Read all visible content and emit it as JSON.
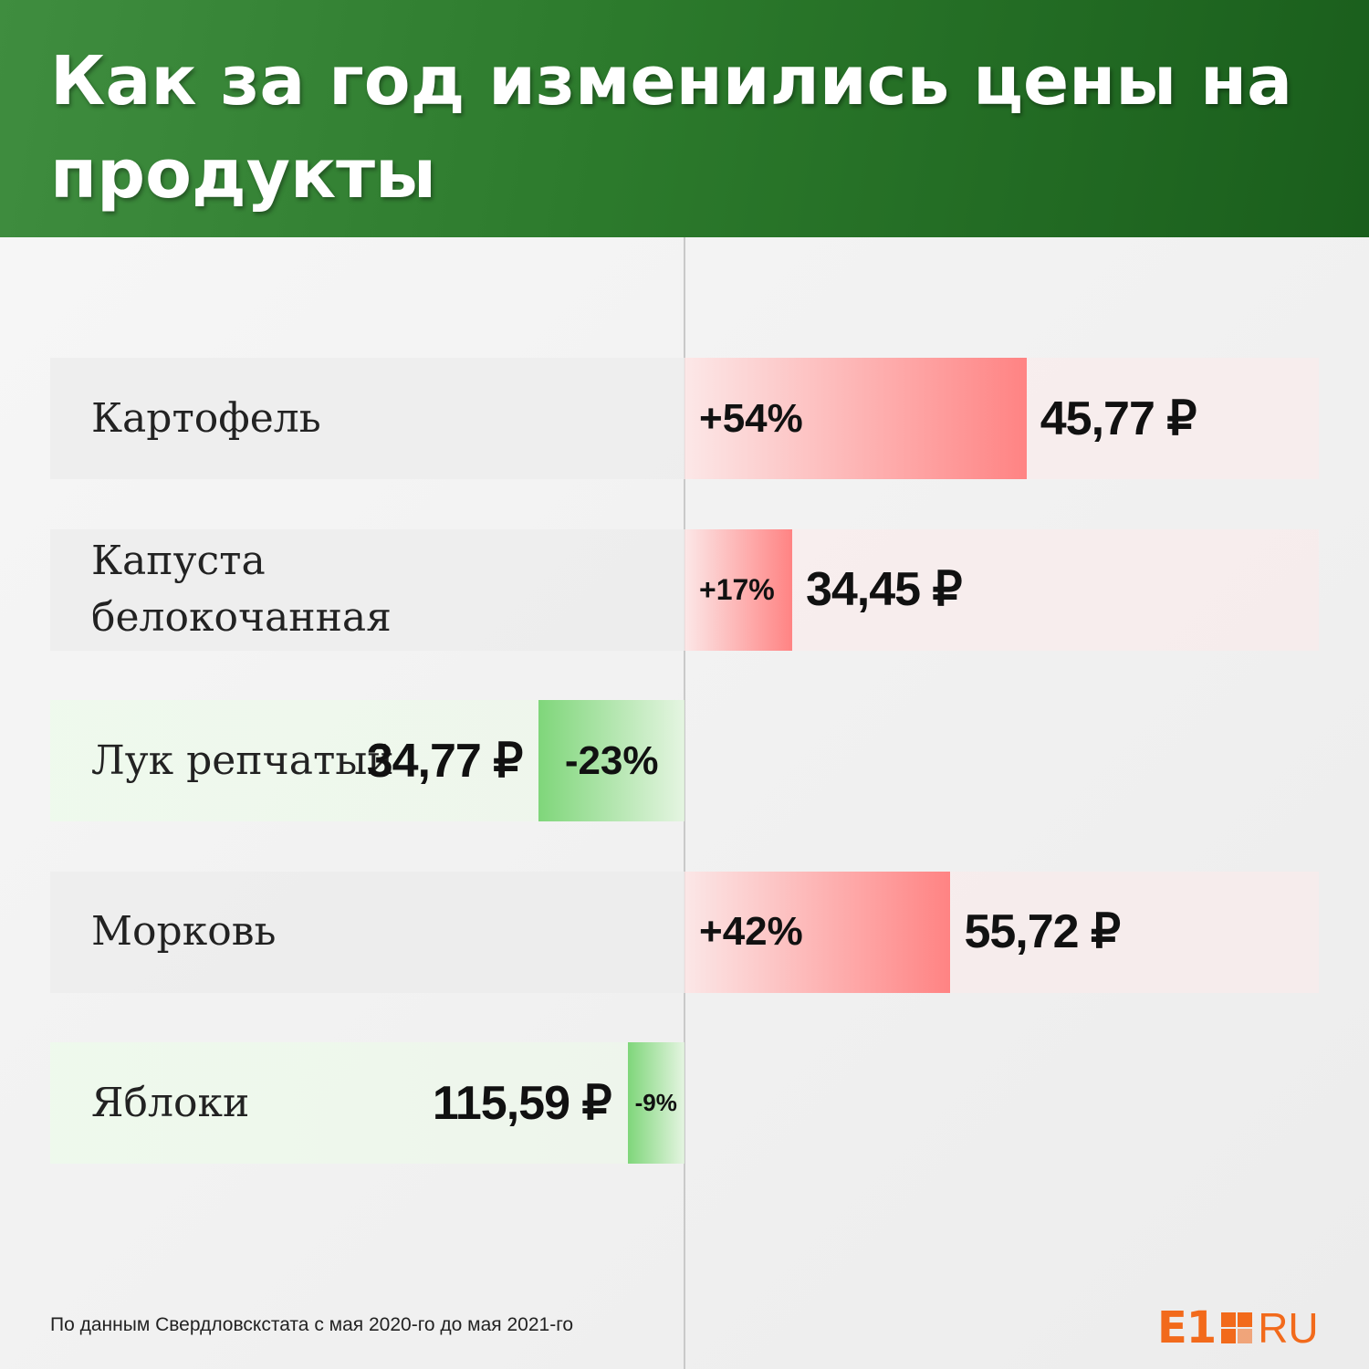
{
  "header": {
    "title": "Как за год изменились цены на продукты"
  },
  "colors": {
    "header_start": "#3f8d3f",
    "header_end": "#1a5e1c",
    "increase": "#ff8383",
    "decrease": "#7fd67a",
    "logo": "#f26a1b"
  },
  "chart_data": {
    "type": "bar",
    "orientation": "horizontal-diverging",
    "categories": [
      "Картофель",
      "Капуста белокочанная",
      "Лук репчатый",
      "Морковь",
      "Яблоки"
    ],
    "change_pct": [
      54,
      17,
      -23,
      42,
      -9
    ],
    "change_labels": [
      "+54%",
      "+17%",
      "-23%",
      "+42%",
      "-9%"
    ],
    "prices": [
      "45,77 ₽",
      "34,45 ₽",
      "34,77 ₽",
      "55,72 ₽",
      "115,59 ₽"
    ],
    "grid": false,
    "legend": "none"
  },
  "footer": {
    "source": "По данным Свердловскстата с мая 2020-го до мая 2021-го",
    "logo_e1": "E1",
    "logo_ru": "RU"
  }
}
